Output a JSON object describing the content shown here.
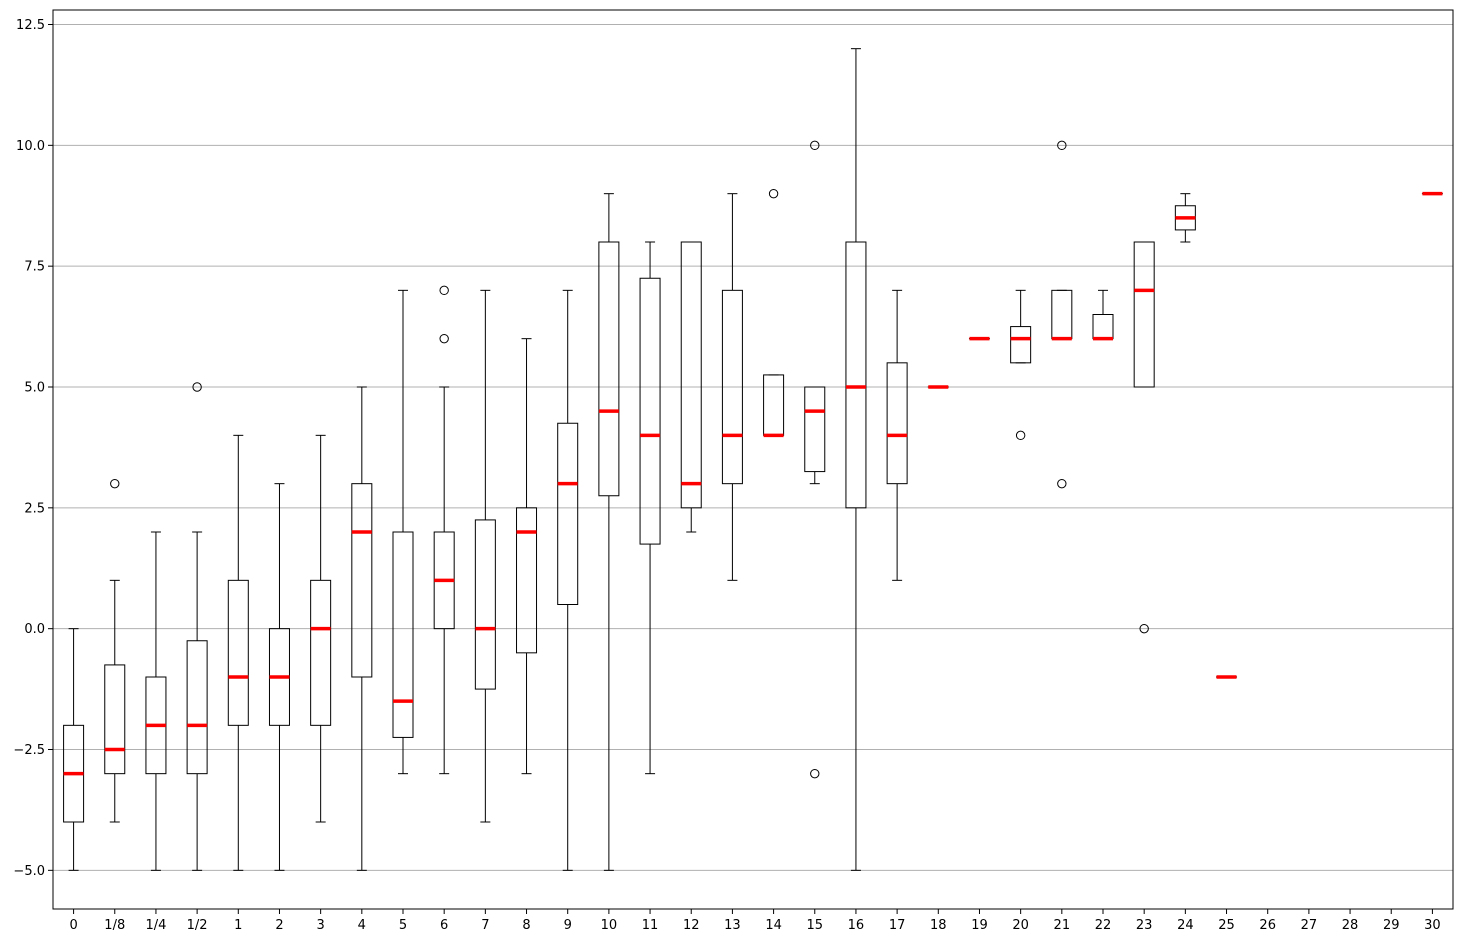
{
  "chart_data": {
    "type": "box",
    "title": "",
    "xlabel": "",
    "ylabel": "",
    "ylim": [
      -5.8,
      12.8
    ],
    "grid": "y",
    "y_ticks": [
      -5.0,
      -2.5,
      0.0,
      2.5,
      5.0,
      7.5,
      10.0,
      12.5
    ],
    "y_tick_labels": [
      "−5.0",
      "−2.5",
      "0.0",
      "2.5",
      "5.0",
      "7.5",
      "10.0",
      "12.5"
    ],
    "categories": [
      "0",
      "1/8",
      "1/4",
      "1/2",
      "1",
      "2",
      "3",
      "4",
      "5",
      "6",
      "7",
      "8",
      "9",
      "10",
      "11",
      "12",
      "13",
      "14",
      "15",
      "16",
      "17",
      "18",
      "19",
      "20",
      "21",
      "22",
      "23",
      "24",
      "25",
      "26",
      "27",
      "28",
      "29",
      "30"
    ],
    "boxes": [
      {
        "category": "0",
        "whisker_low": -5,
        "q1": -4,
        "median": -3,
        "q3": -2,
        "whisker_high": 0,
        "fliers": []
      },
      {
        "category": "1/8",
        "whisker_low": -4,
        "q1": -3,
        "median": -2.5,
        "q3": -0.75,
        "whisker_high": 1,
        "fliers": [
          3
        ]
      },
      {
        "category": "1/4",
        "whisker_low": -5,
        "q1": -3,
        "median": -2,
        "q3": -1,
        "whisker_high": 2,
        "fliers": []
      },
      {
        "category": "1/2",
        "whisker_low": -5,
        "q1": -3,
        "median": -2,
        "q3": -0.25,
        "whisker_high": 2,
        "fliers": [
          5
        ]
      },
      {
        "category": "1",
        "whisker_low": -5,
        "q1": -2,
        "median": -1,
        "q3": 1,
        "whisker_high": 4,
        "fliers": []
      },
      {
        "category": "2",
        "whisker_low": -5,
        "q1": -2,
        "median": -1,
        "q3": 0,
        "whisker_high": 3,
        "fliers": []
      },
      {
        "category": "3",
        "whisker_low": -4,
        "q1": -2,
        "median": 0,
        "q3": 1,
        "whisker_high": 4,
        "fliers": []
      },
      {
        "category": "4",
        "whisker_low": -5,
        "q1": -1,
        "median": 2,
        "q3": 3,
        "whisker_high": 5,
        "fliers": []
      },
      {
        "category": "5",
        "whisker_low": -3,
        "q1": -2.25,
        "median": -1.5,
        "q3": 2,
        "whisker_high": 7,
        "fliers": []
      },
      {
        "category": "6",
        "whisker_low": -3,
        "q1": 0,
        "median": 1,
        "q3": 2,
        "whisker_high": 5,
        "fliers": [
          6,
          7
        ]
      },
      {
        "category": "7",
        "whisker_low": -4,
        "q1": -1.25,
        "median": 0,
        "q3": 2.25,
        "whisker_high": 7,
        "fliers": []
      },
      {
        "category": "8",
        "whisker_low": -3,
        "q1": -0.5,
        "median": 2,
        "q3": 2.5,
        "whisker_high": 6,
        "fliers": []
      },
      {
        "category": "9",
        "whisker_low": -5,
        "q1": 0.5,
        "median": 3,
        "q3": 4.25,
        "whisker_high": 7,
        "fliers": []
      },
      {
        "category": "10",
        "whisker_low": -5,
        "q1": 2.75,
        "median": 4.5,
        "q3": 8,
        "whisker_high": 9,
        "fliers": []
      },
      {
        "category": "11",
        "whisker_low": -3,
        "q1": 1.75,
        "median": 4,
        "q3": 7.25,
        "whisker_high": 8,
        "fliers": []
      },
      {
        "category": "12",
        "whisker_low": 2,
        "q1": 2.5,
        "median": 3,
        "q3": 8,
        "whisker_high": 8,
        "fliers": []
      },
      {
        "category": "13",
        "whisker_low": 1,
        "q1": 3,
        "median": 4,
        "q3": 7,
        "whisker_high": 9,
        "fliers": []
      },
      {
        "category": "14",
        "whisker_low": 4,
        "q1": 4,
        "median": 4,
        "q3": 5.25,
        "whisker_high": 5.25,
        "fliers": [
          9
        ]
      },
      {
        "category": "15",
        "whisker_low": 3,
        "q1": 3.25,
        "median": 4.5,
        "q3": 5,
        "whisker_high": 5,
        "fliers": [
          10,
          -3
        ]
      },
      {
        "category": "16",
        "whisker_low": -5,
        "q1": 2.5,
        "median": 5,
        "q3": 8,
        "whisker_high": 12,
        "fliers": []
      },
      {
        "category": "17",
        "whisker_low": 1,
        "q1": 3,
        "median": 4,
        "q3": 5.5,
        "whisker_high": 7,
        "fliers": []
      },
      {
        "category": "18",
        "whisker_low": 5,
        "q1": 5,
        "median": 5,
        "q3": 5,
        "whisker_high": 5,
        "fliers": []
      },
      {
        "category": "19",
        "whisker_low": 6,
        "q1": 6,
        "median": 6,
        "q3": 6,
        "whisker_high": 6,
        "fliers": []
      },
      {
        "category": "20",
        "whisker_low": 5.5,
        "q1": 5.5,
        "median": 6,
        "q3": 6.25,
        "whisker_high": 7,
        "fliers": [
          4
        ]
      },
      {
        "category": "21",
        "whisker_low": 6,
        "q1": 6,
        "median": 6,
        "q3": 7,
        "whisker_high": 7,
        "fliers": [
          10,
          3
        ]
      },
      {
        "category": "22",
        "whisker_low": 6,
        "q1": 6,
        "median": 6,
        "q3": 6.5,
        "whisker_high": 7,
        "fliers": []
      },
      {
        "category": "23",
        "whisker_low": 5,
        "q1": 5,
        "median": 7,
        "q3": 8,
        "whisker_high": 8,
        "fliers": [
          0
        ]
      },
      {
        "category": "24",
        "whisker_low": 8,
        "q1": 8.25,
        "median": 8.5,
        "q3": 8.75,
        "whisker_high": 9,
        "fliers": []
      },
      {
        "category": "25",
        "whisker_low": -1,
        "q1": -1,
        "median": -1,
        "q3": -1,
        "whisker_high": -1,
        "fliers": []
      },
      {
        "category": "30",
        "whisker_low": 9,
        "q1": 9,
        "median": 9,
        "q3": 9,
        "whisker_high": 9,
        "fliers": []
      }
    ],
    "colors": {
      "box": "#000000",
      "median": "#ff0000",
      "grid": "#b0b0b0",
      "background": "#ffffff"
    }
  }
}
